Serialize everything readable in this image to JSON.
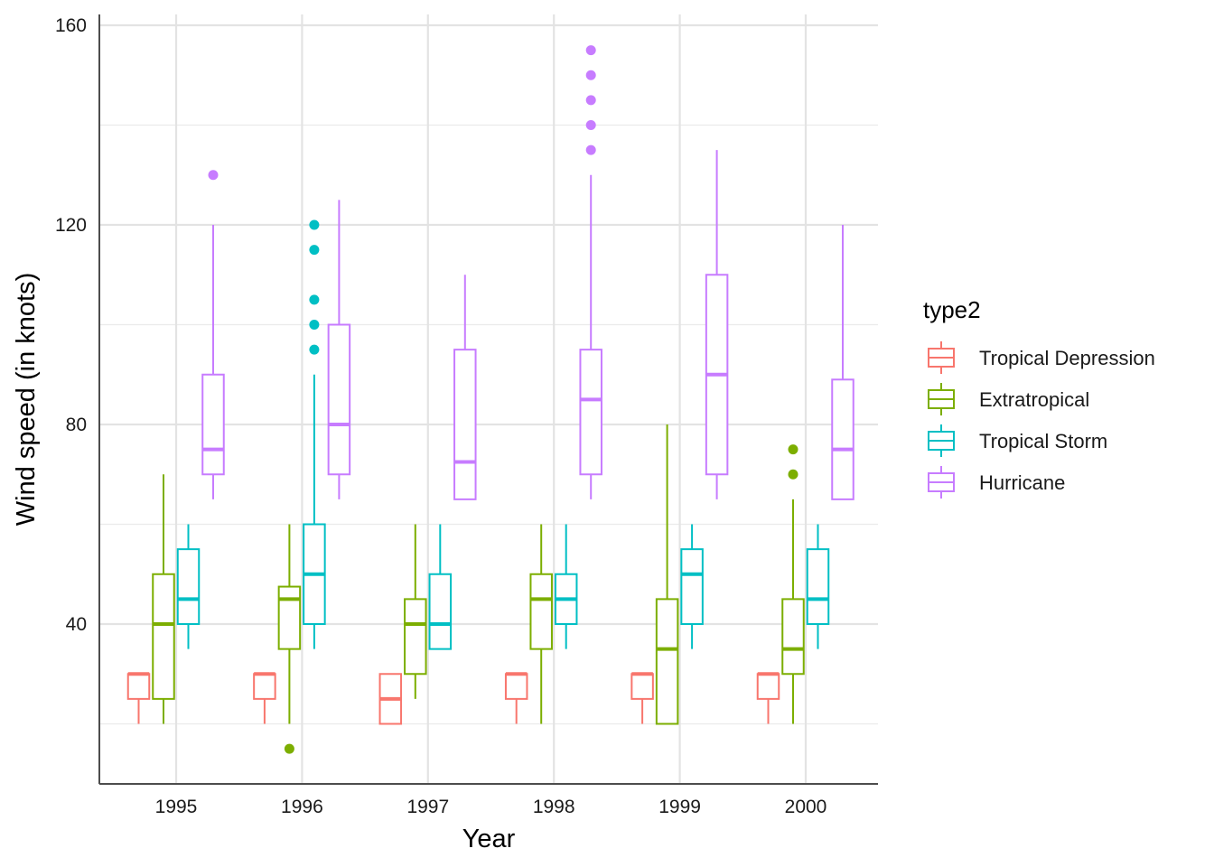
{
  "chart_data": {
    "type": "boxplot",
    "xlabel": "Year",
    "ylabel": "Wind speed (in knots)",
    "categories": [
      "1995",
      "1996",
      "1997",
      "1998",
      "1999",
      "2000"
    ],
    "y_ticks": [
      40,
      80,
      120,
      160
    ],
    "ylim": [
      8,
      160
    ],
    "grid": true,
    "legend": {
      "title": "type2",
      "position": "right"
    },
    "series": [
      {
        "name": "Tropical Depression",
        "color": "#F8766D",
        "boxes": [
          {
            "low": 20,
            "q1": 25,
            "median": 30,
            "q3": 30,
            "high": 30,
            "outliers": []
          },
          {
            "low": 20,
            "q1": 25,
            "median": 30,
            "q3": 30,
            "high": 30,
            "outliers": []
          },
          {
            "low": 20,
            "q1": 20,
            "median": 25,
            "q3": 30,
            "high": 30,
            "outliers": []
          },
          {
            "low": 20,
            "q1": 25,
            "median": 30,
            "q3": 30,
            "high": 30,
            "outliers": []
          },
          {
            "low": 20,
            "q1": 25,
            "median": 30,
            "q3": 30,
            "high": 30,
            "outliers": []
          },
          {
            "low": 20,
            "q1": 25,
            "median": 30,
            "q3": 30,
            "high": 30,
            "outliers": []
          }
        ]
      },
      {
        "name": "Extratropical",
        "color": "#7CAE00",
        "boxes": [
          {
            "low": 20,
            "q1": 25,
            "median": 40,
            "q3": 50,
            "high": 70,
            "outliers": []
          },
          {
            "low": 20,
            "q1": 35,
            "median": 45,
            "q3": 47.5,
            "high": 60,
            "outliers": [
              15
            ]
          },
          {
            "low": 25,
            "q1": 30,
            "median": 40,
            "q3": 45,
            "high": 60,
            "outliers": []
          },
          {
            "low": 20,
            "q1": 35,
            "median": 45,
            "q3": 50,
            "high": 60,
            "outliers": []
          },
          {
            "low": 20,
            "q1": 20,
            "median": 35,
            "q3": 45,
            "high": 80,
            "outliers": []
          },
          {
            "low": 20,
            "q1": 30,
            "median": 35,
            "q3": 45,
            "high": 65,
            "outliers": [
              70,
              75
            ]
          }
        ]
      },
      {
        "name": "Tropical Storm",
        "color": "#00BFC4",
        "boxes": [
          {
            "low": 35,
            "q1": 40,
            "median": 45,
            "q3": 55,
            "high": 60,
            "outliers": []
          },
          {
            "low": 35,
            "q1": 40,
            "median": 50,
            "q3": 60,
            "high": 90,
            "outliers": [
              95,
              100,
              105,
              115,
              120
            ]
          },
          {
            "low": 35,
            "q1": 35,
            "median": 40,
            "q3": 50,
            "high": 60,
            "outliers": []
          },
          {
            "low": 35,
            "q1": 40,
            "median": 45,
            "q3": 50,
            "high": 60,
            "outliers": []
          },
          {
            "low": 35,
            "q1": 40,
            "median": 50,
            "q3": 55,
            "high": 60,
            "outliers": []
          },
          {
            "low": 35,
            "q1": 40,
            "median": 45,
            "q3": 55,
            "high": 60,
            "outliers": []
          }
        ]
      },
      {
        "name": "Hurricane",
        "color": "#C77CFF",
        "boxes": [
          {
            "low": 65,
            "q1": 70,
            "median": 75,
            "q3": 90,
            "high": 120,
            "outliers": [
              130
            ]
          },
          {
            "low": 65,
            "q1": 70,
            "median": 80,
            "q3": 100,
            "high": 125,
            "outliers": []
          },
          {
            "low": 65,
            "q1": 65,
            "median": 72.5,
            "q3": 95,
            "high": 110,
            "outliers": []
          },
          {
            "low": 65,
            "q1": 70,
            "median": 85,
            "q3": 95,
            "high": 130,
            "outliers": [
              135,
              140,
              145,
              150,
              155
            ]
          },
          {
            "low": 65,
            "q1": 70,
            "median": 90,
            "q3": 110,
            "high": 135,
            "outliers": []
          },
          {
            "low": 65,
            "q1": 65,
            "median": 75,
            "q3": 89,
            "high": 120,
            "outliers": []
          }
        ]
      }
    ]
  }
}
